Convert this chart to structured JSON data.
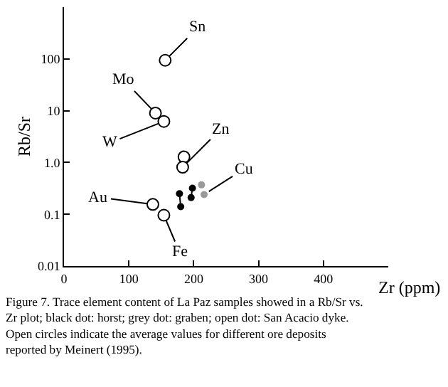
{
  "chart_data": {
    "type": "scatter",
    "xlabel": "Zr (ppm)",
    "ylabel": "Rb/Sr",
    "log": "y",
    "xlim": [
      0,
      500
    ],
    "xticks": [
      0,
      100,
      200,
      300,
      400
    ],
    "ylim": [
      0.01,
      1000
    ],
    "yticks": [
      0.01,
      0.1,
      {
        "value": 1,
        "label": "1.0"
      },
      10,
      100
    ],
    "marker": "circle",
    "series": [
      {
        "color": "#ffffff",
        "x": [
          156,
          141,
          154,
          185,
          183,
          137,
          154
        ],
        "values": [
          94,
          9,
          6.2,
          1.28,
          0.81,
          0.155,
          0.096
        ]
      },
      {
        "type": "line",
        "line_style": "dashed",
        "color": "#000000",
        "x": [
          178,
          180,
          196,
          198
        ],
        "values": [
          0.25,
          0.14,
          0.21,
          0.32
        ]
      },
      {
        "color": "#999999",
        "x": [
          212,
          216
        ],
        "values": [
          0.37,
          0.24
        ]
      }
    ],
    "annotations": [
      {
        "text": "Sn",
        "x": 156,
        "y": 94
      },
      {
        "text": "Mo",
        "x": 141,
        "y": 9
      },
      {
        "text": "W",
        "x": 154,
        "y": 6.2
      },
      {
        "text": "Zn",
        "x": 183,
        "y": 0.81
      },
      {
        "text": "Cu",
        "x": 216,
        "y": 0.24
      },
      {
        "text": "Au",
        "x": 137,
        "y": 0.155
      },
      {
        "text": "Fe",
        "x": 154,
        "y": 0.096
      },
      "Figure 7. Trace element content of La Paz samples showed in a Rb/Sr vs. Zr plot; black dot: horst; grey dot: graben; open dot: San Acacio dyke. Open circles indicate the average values for different ore deposits reported by Meinert (1995)."
    ]
  }
}
